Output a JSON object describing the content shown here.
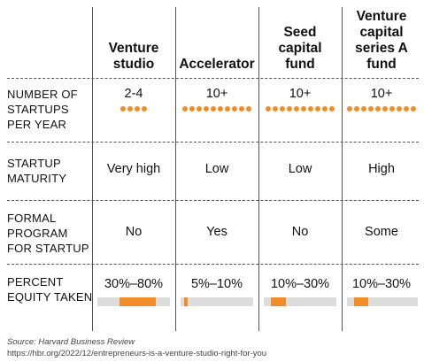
{
  "columns": [
    {
      "title": "Venture studio",
      "startups": "2-4",
      "dots": 4,
      "maturity": "Very high",
      "program": "No",
      "equity": "30%–80%",
      "equity_min": 30,
      "equity_max": 80
    },
    {
      "title": "Accelerator",
      "startups": "10+",
      "dots": 10,
      "maturity": "Low",
      "program": "Yes",
      "equity": "5%–10%",
      "equity_min": 5,
      "equity_max": 10
    },
    {
      "title": "Seed capital fund",
      "startups": "10+",
      "dots": 10,
      "maturity": "Low",
      "program": "No",
      "equity": "10%–30%",
      "equity_min": 10,
      "equity_max": 30
    },
    {
      "title": "Venture capital series A fund",
      "startups": "10+",
      "dots": 10,
      "maturity": "High",
      "program": "Some",
      "equity": "10%–30%",
      "equity_min": 10,
      "equity_max": 30
    }
  ],
  "rows": {
    "startups": "NUMBER OF STARTUPS PER YEAR",
    "maturity": "STARTUP MATURITY",
    "program": "FORMAL PROGRAM FOR STARTUP",
    "equity": "PERCENT EQUITY TAKEN"
  },
  "source": "Source: Harvard Business Review",
  "url": "https://hbr.org/2022/12/entrepreneurs-is-a-venture-studio-right-for-you",
  "colors": {
    "accent": "#f28c28",
    "bar_bg": "#dcdcdc"
  }
}
